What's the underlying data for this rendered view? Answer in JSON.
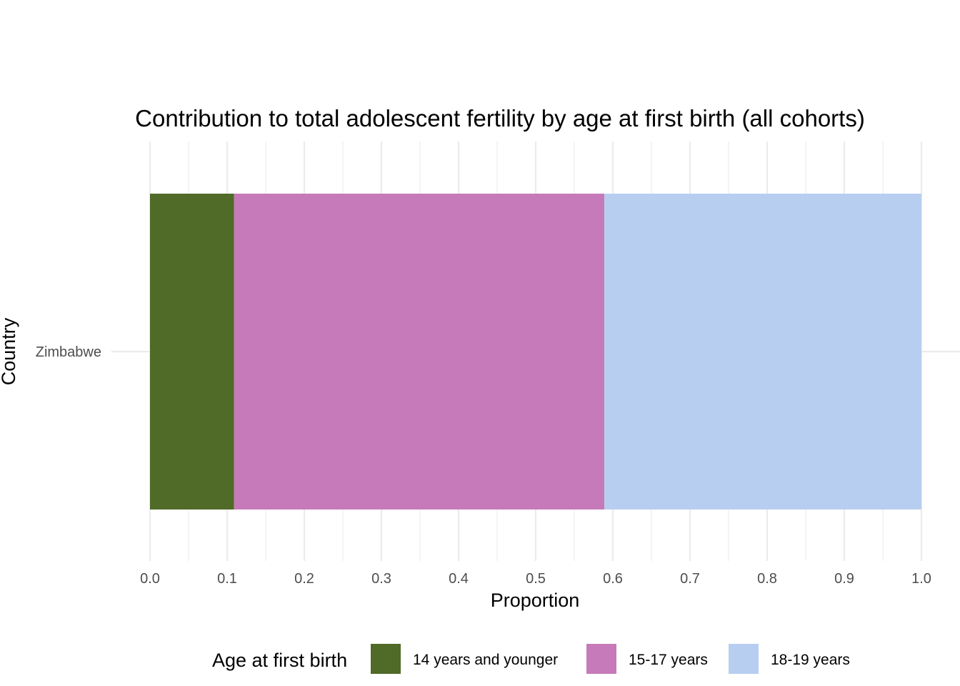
{
  "chart_data": {
    "type": "bar",
    "orientation": "horizontal",
    "stacked": true,
    "title": "Contribution to total adolescent fertility by age at first birth (all cohorts)",
    "xlabel": "Proportion",
    "ylabel": "Country",
    "xlim": [
      0,
      1
    ],
    "x_ticks": [
      "0.0",
      "0.1",
      "0.2",
      "0.3",
      "0.4",
      "0.5",
      "0.6",
      "0.7",
      "0.8",
      "0.9",
      "1.0"
    ],
    "categories": [
      "Zimbabwe"
    ],
    "series": [
      {
        "name": "14 years and younger",
        "values": [
          0.109
        ],
        "color": "#506a27"
      },
      {
        "name": "15-17 years",
        "values": [
          0.48
        ],
        "color": "#c77ab9"
      },
      {
        "name": "18-19 years",
        "values": [
          0.411
        ],
        "color": "#b7cef0"
      }
    ],
    "legend": {
      "title": "Age at first birth",
      "position": "bottom"
    },
    "grid": true
  }
}
